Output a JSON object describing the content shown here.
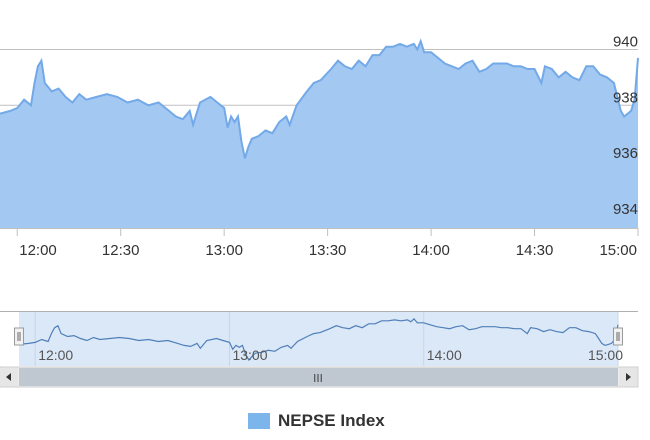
{
  "chart_data": {
    "type": "area",
    "title": "",
    "xlabel": "",
    "ylabel": "",
    "series": [
      {
        "name": "NEPSE Index",
        "points": [
          [
            "11:55",
            937.7
          ],
          [
            "11:58",
            937.8
          ],
          [
            "12:00",
            937.9
          ],
          [
            "12:02",
            938.2
          ],
          [
            "12:04",
            938.0
          ],
          [
            "12:05",
            938.8
          ],
          [
            "12:06",
            939.4
          ],
          [
            "12:07",
            939.6
          ],
          [
            "12:08",
            938.8
          ],
          [
            "12:10",
            938.5
          ],
          [
            "12:12",
            938.6
          ],
          [
            "12:14",
            938.3
          ],
          [
            "12:16",
            938.1
          ],
          [
            "12:18",
            938.4
          ],
          [
            "12:20",
            938.2
          ],
          [
            "12:23",
            938.3
          ],
          [
            "12:26",
            938.4
          ],
          [
            "12:29",
            938.3
          ],
          [
            "12:32",
            938.1
          ],
          [
            "12:35",
            938.2
          ],
          [
            "12:38",
            938.0
          ],
          [
            "12:41",
            938.1
          ],
          [
            "12:44",
            937.8
          ],
          [
            "12:46",
            937.6
          ],
          [
            "12:48",
            937.5
          ],
          [
            "12:50",
            937.8
          ],
          [
            "12:51",
            937.3
          ],
          [
            "12:53",
            938.1
          ],
          [
            "12:56",
            938.3
          ],
          [
            "12:58",
            938.1
          ],
          [
            "13:00",
            937.9
          ],
          [
            "13:01",
            937.2
          ],
          [
            "13:02",
            937.6
          ],
          [
            "13:03",
            937.4
          ],
          [
            "13:04",
            937.6
          ],
          [
            "13:05",
            936.7
          ],
          [
            "13:06",
            936.1
          ],
          [
            "13:07",
            936.5
          ],
          [
            "13:08",
            936.8
          ],
          [
            "13:10",
            936.9
          ],
          [
            "13:12",
            937.1
          ],
          [
            "13:14",
            937.0
          ],
          [
            "13:16",
            937.4
          ],
          [
            "13:18",
            937.6
          ],
          [
            "13:19",
            937.3
          ],
          [
            "13:21",
            938.0
          ],
          [
            "13:24",
            938.5
          ],
          [
            "13:26",
            938.8
          ],
          [
            "13:28",
            938.9
          ],
          [
            "13:31",
            939.3
          ],
          [
            "13:33",
            939.6
          ],
          [
            "13:35",
            939.4
          ],
          [
            "13:37",
            939.3
          ],
          [
            "13:39",
            939.6
          ],
          [
            "13:41",
            939.4
          ],
          [
            "13:43",
            939.8
          ],
          [
            "13:45",
            939.8
          ],
          [
            "13:47",
            940.1
          ],
          [
            "13:49",
            940.1
          ],
          [
            "13:51",
            940.2
          ],
          [
            "13:53",
            940.1
          ],
          [
            "13:55",
            940.2
          ],
          [
            "13:56",
            940.0
          ],
          [
            "13:57",
            940.3
          ],
          [
            "13:58",
            939.9
          ],
          [
            "14:00",
            939.9
          ],
          [
            "14:02",
            939.7
          ],
          [
            "14:04",
            939.5
          ],
          [
            "14:06",
            939.4
          ],
          [
            "14:08",
            939.3
          ],
          [
            "14:10",
            939.5
          ],
          [
            "14:12",
            939.6
          ],
          [
            "14:14",
            939.2
          ],
          [
            "14:16",
            939.3
          ],
          [
            "14:18",
            939.5
          ],
          [
            "14:20",
            939.5
          ],
          [
            "14:22",
            939.5
          ],
          [
            "14:24",
            939.4
          ],
          [
            "14:26",
            939.4
          ],
          [
            "14:28",
            939.3
          ],
          [
            "14:30",
            939.3
          ],
          [
            "14:32",
            938.8
          ],
          [
            "14:33",
            939.4
          ],
          [
            "14:35",
            939.3
          ],
          [
            "14:37",
            939.0
          ],
          [
            "14:39",
            939.2
          ],
          [
            "14:41",
            939.0
          ],
          [
            "14:43",
            938.9
          ],
          [
            "14:45",
            939.4
          ],
          [
            "14:47",
            939.4
          ],
          [
            "14:49",
            939.1
          ],
          [
            "14:51",
            939.0
          ],
          [
            "14:53",
            938.8
          ],
          [
            "14:54",
            938.3
          ],
          [
            "14:55",
            937.8
          ],
          [
            "14:56",
            937.6
          ],
          [
            "14:57",
            937.7
          ],
          [
            "14:58",
            937.8
          ],
          [
            "14:59",
            938.2
          ],
          [
            "15:00",
            939.7
          ]
        ]
      }
    ],
    "x_ticks": [
      "12:00",
      "12:30",
      "13:00",
      "13:30",
      "14:00",
      "14:30",
      "15:00"
    ],
    "y_ticks": [
      934,
      936,
      938,
      940
    ],
    "xlim": [
      "11:55",
      "15:00"
    ],
    "ylim": [
      933.6,
      940.7
    ],
    "navigator": {
      "labels": [
        "12:00",
        "13:00",
        "14:00",
        "15:00"
      ],
      "range": [
        "11:55",
        "15:00"
      ],
      "ylim": [
        935.5,
        941.0
      ]
    },
    "scrollbar_grip": "III",
    "colors": {
      "fill": "#a3c9f2",
      "line": "#73a9e8",
      "grid": "#c0c0c0",
      "navigator_fill": "#dbe8f7",
      "legend_swatch": "#7cb5ec"
    },
    "grid": true,
    "legend_position": "bottom-center"
  }
}
